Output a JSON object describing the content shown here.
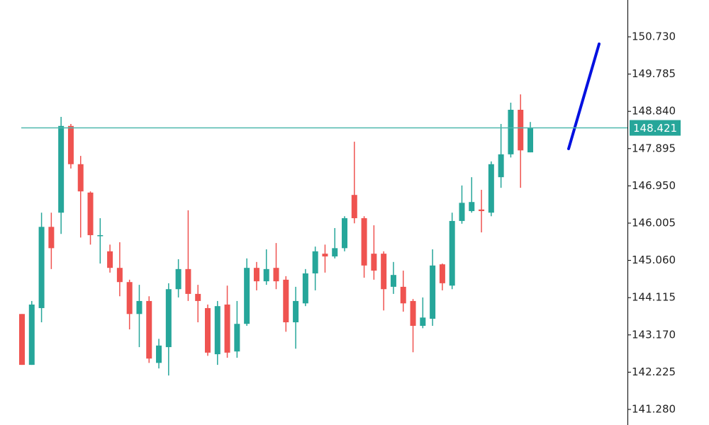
{
  "chart_data": {
    "type": "candlestick",
    "up_color": "#26a69a",
    "down_color": "#ef5350",
    "price_line_color": "#4fb8ae",
    "ylim": [
      140.885,
      151.664
    ],
    "yticks": [
      {
        "value": 150.73,
        "label": "150.730"
      },
      149.785,
      {
        "value": 148.84,
        "label": "148.840"
      },
      147.895,
      {
        "value": 146.95,
        "label": "146.950"
      },
      146.005,
      {
        "value": 145.06,
        "label": "145.060"
      },
      144.115,
      {
        "value": 143.17,
        "label": "143.170"
      },
      142.225,
      {
        "value": 141.28,
        "label": "141.280"
      }
    ],
    "last_price": 148.421,
    "open": [
      143.7,
      142.41,
      143.85,
      145.91,
      146.27,
      148.47,
      147.5,
      146.78,
      145.7,
      145.29,
      144.87,
      144.51,
      143.7,
      144.03,
      142.46,
      142.86,
      144.33,
      144.84,
      144.21,
      143.85,
      142.68,
      143.94,
      142.75,
      143.45,
      144.87,
      144.53,
      144.87,
      144.57,
      143.49,
      143.97,
      144.73,
      145.23,
      145.16,
      145.37,
      146.72,
      146.13,
      145.23,
      145.23,
      144.39,
      144.39,
      144.03,
      143.4,
      143.58,
      144.96,
      144.42,
      146.06,
      146.31,
      146.35,
      146.27,
      147.17,
      147.75,
      148.88,
      147.8
    ],
    "close": [
      142.41,
      143.94,
      145.91,
      145.37,
      148.47,
      147.5,
      146.81,
      145.7,
      145.7,
      144.87,
      144.51,
      143.7,
      144.03,
      142.57,
      142.9,
      144.33,
      144.84,
      144.21,
      144.03,
      142.72,
      143.9,
      142.72,
      143.45,
      144.87,
      144.53,
      144.84,
      144.53,
      143.49,
      144.03,
      144.73,
      145.29,
      145.16,
      145.37,
      146.13,
      146.13,
      144.93,
      144.8,
      144.33,
      144.69,
      143.97,
      143.4,
      143.61,
      144.93,
      144.48,
      146.06,
      146.52,
      146.54,
      146.31,
      147.5,
      147.75,
      148.88,
      147.85,
      148.421
    ],
    "high": [
      143.7,
      144.03,
      146.27,
      146.27,
      148.7,
      148.52,
      147.71,
      146.81,
      146.13,
      145.46,
      145.52,
      144.57,
      144.44,
      144.15,
      143.07,
      144.48,
      145.09,
      146.33,
      144.44,
      143.94,
      144.03,
      144.42,
      144.03,
      145.11,
      145.02,
      145.34,
      145.5,
      144.66,
      144.39,
      144.84,
      145.41,
      145.46,
      145.88,
      146.18,
      148.07,
      146.18,
      145.95,
      145.29,
      145.02,
      144.8,
      144.08,
      144.12,
      145.34,
      144.98,
      146.27,
      146.96,
      147.17,
      146.85,
      147.57,
      148.52,
      149.06,
      149.27,
      148.57
    ],
    "low": [
      142.41,
      142.41,
      143.49,
      144.84,
      145.73,
      147.39,
      145.64,
      145.46,
      144.98,
      144.75,
      144.15,
      143.31,
      142.86,
      142.46,
      142.32,
      142.14,
      144.12,
      144.03,
      143.49,
      142.64,
      142.41,
      142.59,
      142.59,
      143.4,
      144.3,
      144.44,
      144.33,
      143.25,
      142.82,
      143.9,
      144.3,
      144.75,
      145.11,
      145.29,
      146.0,
      144.62,
      144.57,
      143.79,
      144.21,
      143.76,
      142.73,
      143.34,
      143.4,
      144.3,
      144.33,
      145.99,
      146.27,
      145.77,
      146.18,
      146.9,
      147.67,
      146.9,
      147.8
    ]
  }
}
